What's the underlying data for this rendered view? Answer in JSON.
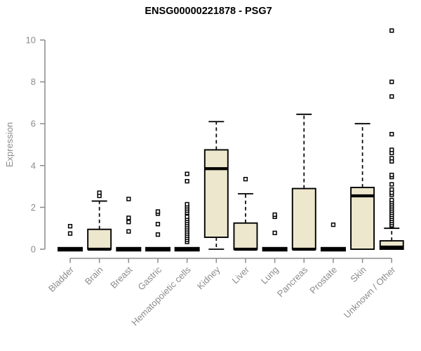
{
  "chart_data": {
    "type": "box",
    "title": "ENSG00000221878 - PSG7",
    "ylabel": "Expression",
    "xlabel": "",
    "ylim": [
      0,
      10
    ],
    "yticks": [
      0,
      2,
      4,
      6,
      8,
      10
    ],
    "grid": false,
    "legend": null,
    "categories": [
      "Bladder",
      "Brain",
      "Breast",
      "Gastric",
      "Hematopoietic cells",
      "Kidney",
      "Liver",
      "Lung",
      "Pancreas",
      "Prostate",
      "Skin",
      "Unknown / Other"
    ],
    "series": [
      {
        "name": "Bladder",
        "low": 0,
        "q1": 0,
        "median": 0,
        "q3": 0,
        "high": 0,
        "outliers": [
          0.75,
          1.1
        ]
      },
      {
        "name": "Brain",
        "low": 0,
        "q1": 0,
        "median": 0,
        "q3": 0.95,
        "high": 2.3,
        "outliers": [
          2.55,
          2.7
        ]
      },
      {
        "name": "Breast",
        "low": 0,
        "q1": 0,
        "median": 0,
        "q3": 0,
        "high": 0,
        "outliers": [
          0.85,
          1.3,
          1.5,
          2.4
        ]
      },
      {
        "name": "Gastric",
        "low": 0,
        "q1": 0,
        "median": 0,
        "q3": 0,
        "high": 0,
        "outliers": [
          0.7,
          1.2,
          1.7,
          1.8
        ]
      },
      {
        "name": "Hematopoietic cells",
        "low": 0,
        "q1": 0,
        "median": 0,
        "q3": 0,
        "high": 0,
        "outliers": [
          0.35,
          0.45,
          0.55,
          0.65,
          0.75,
          0.85,
          0.95,
          1.05,
          1.15,
          1.25,
          1.35,
          1.45,
          1.55,
          1.75,
          1.85,
          1.95,
          2.05,
          2.15,
          3.25,
          3.6
        ]
      },
      {
        "name": "Kidney",
        "low": 0,
        "q1": 0.57,
        "median": 3.85,
        "q3": 4.75,
        "high": 6.1,
        "outliers": []
      },
      {
        "name": "Liver",
        "low": 0,
        "q1": 0,
        "median": 0,
        "q3": 1.25,
        "high": 2.65,
        "outliers": [
          3.35
        ]
      },
      {
        "name": "Lung",
        "low": 0,
        "q1": 0,
        "median": 0,
        "q3": 0,
        "high": 0,
        "outliers": [
          0.78,
          1.55,
          1.65
        ]
      },
      {
        "name": "Pancreas",
        "low": 0,
        "q1": 0,
        "median": 0,
        "q3": 2.9,
        "high": 6.45,
        "outliers": []
      },
      {
        "name": "Prostate",
        "low": 0,
        "q1": 0,
        "median": 0,
        "q3": 0,
        "high": 0,
        "outliers": [
          1.17
        ]
      },
      {
        "name": "Skin",
        "low": 0,
        "q1": 0,
        "median": 2.55,
        "q3": 2.95,
        "high": 6.0,
        "outliers": []
      },
      {
        "name": "Unknown / Other",
        "low": 0,
        "q1": 0,
        "median": 0.1,
        "q3": 0.4,
        "high": 1.0,
        "outliers": [
          1.1,
          1.15,
          1.25,
          1.35,
          1.45,
          1.55,
          1.65,
          1.75,
          1.85,
          1.95,
          2.05,
          2.15,
          2.25,
          2.35,
          2.6,
          2.7,
          2.85,
          3.1,
          3.45,
          3.55,
          4.2,
          4.35,
          4.6,
          4.75,
          5.5,
          7.3,
          8.0,
          10.45
        ]
      }
    ],
    "colors": {
      "box_fill": "#ECE7CD",
      "box_stroke": "#000000",
      "median": "#000000",
      "whisker": "#000000",
      "outlier_stroke": "#000000",
      "outlier_fill": "#FFFFFF",
      "axis": "#8C8C8C",
      "tick_label": "#8C8C8C",
      "title": "#000000",
      "background": "#FFFFFF"
    }
  }
}
